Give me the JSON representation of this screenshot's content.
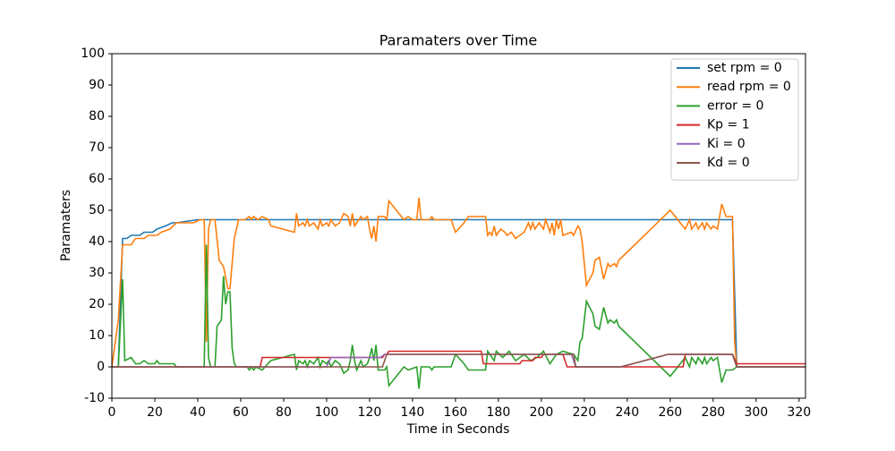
{
  "chart_data": {
    "type": "line",
    "title": "Paramaters over Time",
    "xlabel": "Time in Seconds",
    "ylabel": "Paramaters",
    "xlim": [
      0,
      323
    ],
    "ylim": [
      -10,
      100
    ],
    "xticks": [
      0,
      20,
      40,
      60,
      80,
      100,
      120,
      140,
      160,
      180,
      200,
      220,
      240,
      260,
      280,
      300,
      320
    ],
    "yticks": [
      -10,
      0,
      10,
      20,
      30,
      40,
      50,
      60,
      70,
      80,
      90,
      100
    ],
    "legend": "upper right",
    "grid": false,
    "series": [
      {
        "name": "set rpm = 0",
        "color": "#1f77b4",
        "x": [
          0,
          3,
          5,
          7,
          9,
          13,
          15,
          19,
          21,
          25,
          28,
          30,
          40,
          44,
          50,
          289,
          291,
          323
        ],
        "values": [
          0,
          0,
          41,
          41,
          42,
          42,
          43,
          43,
          44,
          45,
          46,
          46,
          47,
          47,
          47,
          47,
          0,
          0
        ]
      },
      {
        "name": "read rpm = 0",
        "color": "#ff7f0e",
        "x": [
          0,
          3,
          5,
          9,
          11,
          15,
          17,
          21,
          23,
          27,
          30,
          38,
          41,
          43,
          44,
          45,
          46,
          48,
          50,
          52,
          54,
          55,
          57,
          59,
          62,
          64,
          65,
          66,
          68,
          70,
          73,
          74,
          85,
          86,
          87,
          89,
          90,
          91,
          92,
          94,
          96,
          97,
          98,
          100,
          101,
          102,
          104,
          106,
          108,
          110,
          111,
          112,
          113,
          116,
          117,
          119,
          120,
          121,
          122,
          123,
          124,
          127,
          128,
          129,
          136,
          138,
          140,
          142,
          143,
          144,
          148,
          149,
          150,
          158,
          160,
          164,
          166,
          174,
          175,
          176,
          177,
          178,
          179,
          181,
          183,
          184,
          186,
          188,
          190,
          192,
          194,
          195,
          196,
          197,
          199,
          200,
          201,
          202,
          204,
          205,
          206,
          207,
          208,
          209,
          210,
          214,
          215,
          217,
          218,
          219,
          221,
          224,
          225,
          227,
          229,
          231,
          232,
          234,
          235,
          236,
          260,
          267,
          269,
          270,
          272,
          273,
          275,
          276,
          277,
          279,
          280,
          282,
          284,
          286,
          289,
          290,
          291,
          323
        ],
        "values": [
          0,
          15,
          39,
          39,
          41,
          41,
          42,
          42,
          43,
          44,
          46,
          46,
          47,
          47,
          8,
          44,
          47,
          47,
          34,
          32,
          25,
          25,
          41,
          47,
          47,
          48,
          47,
          48,
          47,
          48,
          47,
          45,
          43,
          49,
          45,
          46,
          45,
          47,
          45,
          46,
          44,
          47,
          45,
          46,
          45,
          47,
          45,
          46,
          49,
          48,
          45,
          49,
          45,
          48,
          47,
          48,
          44,
          41,
          45,
          40,
          48,
          48,
          47,
          53,
          47,
          48,
          47,
          47,
          54,
          47,
          47,
          48,
          47,
          47,
          43,
          46,
          48,
          48,
          42,
          43,
          42,
          45,
          42,
          44,
          43,
          42,
          43,
          41,
          42,
          43,
          46,
          44,
          46,
          44,
          46,
          45,
          44,
          47,
          43,
          46,
          42,
          47,
          44,
          47,
          42,
          43,
          42,
          45,
          44,
          40,
          26,
          30,
          34,
          35,
          28,
          33,
          32,
          33,
          32,
          34,
          50,
          44,
          47,
          44,
          46,
          44,
          46,
          44,
          46,
          44,
          45,
          44,
          52,
          48,
          48,
          8,
          0,
          0
        ]
      },
      {
        "name": "error = 0",
        "color": "#2ca02c",
        "x": [
          0,
          3,
          5,
          6,
          9,
          11,
          13,
          15,
          17,
          20,
          21,
          22,
          29,
          30,
          43,
          44,
          45,
          46,
          48,
          49,
          51,
          52,
          53,
          54,
          55,
          56,
          57,
          58,
          63,
          64,
          65,
          66,
          67,
          70,
          74,
          85,
          86,
          87,
          89,
          90,
          91,
          92,
          94,
          96,
          97,
          98,
          100,
          101,
          102,
          104,
          106,
          108,
          110,
          111,
          112,
          113,
          114,
          116,
          117,
          119,
          120,
          121,
          122,
          123,
          124,
          127,
          128,
          129,
          136,
          138,
          142,
          143,
          144,
          148,
          149,
          150,
          158,
          160,
          164,
          166,
          174,
          175,
          176,
          178,
          179,
          182,
          185,
          188,
          192,
          195,
          198,
          201,
          204,
          207,
          210,
          215,
          217,
          218,
          219,
          221,
          224,
          225,
          227,
          229,
          231,
          232,
          234,
          235,
          236,
          260,
          267,
          269,
          270,
          272,
          273,
          275,
          276,
          277,
          279,
          280,
          282,
          284,
          286,
          289,
          291,
          323
        ],
        "values": [
          0,
          0,
          28,
          2,
          3,
          1,
          1,
          2,
          1,
          1,
          2,
          1,
          1,
          0,
          0,
          39,
          3,
          0,
          0,
          13,
          15,
          29,
          20,
          24,
          24,
          6,
          1,
          0,
          0,
          -1,
          0,
          -1,
          0,
          -1,
          2,
          4,
          -1,
          2,
          1,
          2,
          0,
          2,
          1,
          3,
          0,
          2,
          1,
          2,
          0,
          2,
          1,
          -2,
          -1,
          2,
          7,
          2,
          -1,
          2,
          0,
          1,
          3,
          6,
          2,
          7,
          -1,
          -1,
          0,
          -6,
          0,
          -1,
          0,
          -7,
          0,
          0,
          -1,
          0,
          0,
          4,
          1,
          -1,
          -1,
          5,
          4,
          2,
          5,
          3,
          5,
          2,
          4,
          2,
          3,
          5,
          1,
          4,
          5,
          4,
          2,
          8,
          9,
          21,
          17,
          13,
          12,
          19,
          14,
          15,
          14,
          15,
          13,
          -3,
          3,
          0,
          3,
          1,
          3,
          1,
          3,
          1,
          3,
          2,
          3,
          -5,
          -1,
          -1,
          0,
          0
        ]
      },
      {
        "name": "Kp = 1",
        "color": "#d62728",
        "x": [
          0,
          69,
          70,
          126,
          127,
          128,
          129,
          172,
          173,
          190,
          191,
          196,
          197,
          200,
          201,
          210,
          212,
          266,
          267,
          289,
          291,
          323
        ],
        "values": [
          0,
          0,
          3,
          3,
          4,
          4,
          5,
          5,
          1,
          1,
          2,
          2,
          3,
          3,
          4,
          4,
          0,
          0,
          4,
          4,
          1,
          1
        ]
      },
      {
        "name": "Ki = 0",
        "color": "#9467bd",
        "x": [
          0,
          100,
          102,
          125,
          127,
          214,
          216,
          237,
          259,
          289,
          291,
          323
        ],
        "values": [
          0,
          0,
          3,
          3,
          4,
          4,
          0,
          0,
          4,
          4,
          0,
          0
        ]
      },
      {
        "name": "Kd = 0",
        "color": "#8c564b",
        "x": [
          0,
          126,
          128,
          215,
          216,
          237,
          259,
          289,
          291,
          323
        ],
        "values": [
          0,
          0,
          4,
          4,
          0,
          0,
          4,
          4,
          0,
          0
        ]
      }
    ]
  }
}
